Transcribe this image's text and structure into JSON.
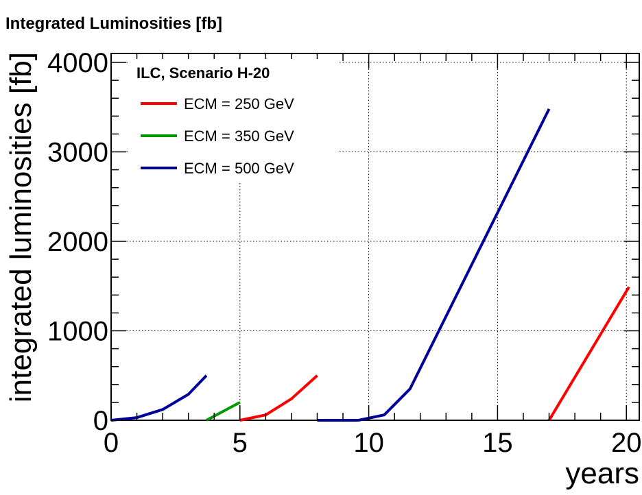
{
  "chart_data": {
    "type": "line",
    "title": "Integrated Luminosities  [fb]",
    "xlabel": "years",
    "ylabel": "integrated luminosities  [fb]",
    "xlim": [
      0,
      20.5
    ],
    "ylim": [
      0,
      4100
    ],
    "xticks": [
      0,
      5,
      10,
      15,
      20
    ],
    "yticks": [
      0,
      1000,
      2000,
      3000,
      4000
    ],
    "grid": true,
    "legend": {
      "title": "ILC, Scenario H-20",
      "placement": "top-left"
    },
    "series": [
      {
        "name": "ECM = 250 GeV",
        "color": "#ff0000",
        "segments": [
          [
            [
              5,
              0
            ],
            [
              6,
              60
            ],
            [
              7,
              240
            ],
            [
              8,
              500
            ]
          ],
          [
            [
              17,
              0
            ],
            [
              20.1,
              1490
            ]
          ]
        ]
      },
      {
        "name": "ECM = 350 GeV",
        "color": "#009900",
        "segments": [
          [
            [
              3.7,
              0
            ],
            [
              5,
              200
            ]
          ]
        ]
      },
      {
        "name": "ECM = 500 GeV",
        "color": "#000099",
        "segments": [
          [
            [
              0,
              0
            ],
            [
              1,
              30
            ],
            [
              2,
              120
            ],
            [
              3,
              290
            ],
            [
              3.7,
              500
            ]
          ],
          [
            [
              8,
              0
            ],
            [
              9.6,
              0
            ]
          ],
          [
            [
              9.6,
              0
            ],
            [
              10.6,
              60
            ],
            [
              11.6,
              350
            ],
            [
              17,
              3480
            ]
          ]
        ]
      }
    ]
  }
}
